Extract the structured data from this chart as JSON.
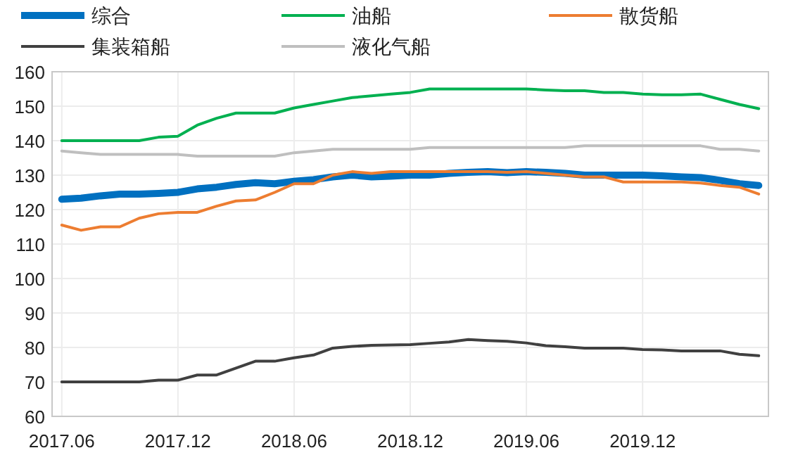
{
  "chart_data": {
    "type": "line",
    "categories": [
      "2017.06",
      null,
      null,
      null,
      null,
      null,
      "2017.12",
      null,
      null,
      null,
      null,
      null,
      "2018.06",
      null,
      null,
      null,
      null,
      null,
      "2018.12",
      null,
      null,
      null,
      null,
      null,
      "2019.06",
      null,
      null,
      null,
      null,
      null,
      "2019.12",
      null,
      null,
      null,
      null,
      null,
      null
    ],
    "ylim": [
      60,
      160
    ],
    "yticks": [
      60,
      70,
      80,
      90,
      100,
      110,
      120,
      130,
      140,
      150,
      160
    ],
    "grid": true,
    "legend": "top",
    "marker": "none",
    "line_style": "solid",
    "series": [
      {
        "name": "综合",
        "color": "#0070c0",
        "values": [
          123,
          123.3,
          124,
          124.5,
          124.5,
          124.7,
          125,
          126,
          126.5,
          127.3,
          127.8,
          127.5,
          128.2,
          128.7,
          129.5,
          130,
          129.5,
          129.7,
          130,
          130,
          130.5,
          130.8,
          131,
          130.7,
          131,
          130.8,
          130.5,
          130,
          130,
          130,
          130,
          129.8,
          129.5,
          129.3,
          128.5,
          127.5,
          127
        ]
      },
      {
        "name": "油船",
        "color": "#00b050",
        "values": [
          140,
          140,
          140,
          140,
          140,
          141,
          141.3,
          144.5,
          146.5,
          148,
          148,
          148,
          149.5,
          150.5,
          151.5,
          152.5,
          153,
          153.5,
          154,
          155,
          155,
          155,
          155,
          155,
          155,
          154.7,
          154.5,
          154.5,
          154,
          154,
          153.5,
          153.3,
          153.3,
          153.5,
          152,
          150.5,
          149.3
        ]
      },
      {
        "name": "散货船",
        "color": "#ed7d31",
        "values": [
          115.5,
          114,
          115,
          115,
          117.5,
          118.8,
          119.2,
          119.2,
          121,
          122.5,
          122.8,
          125,
          127.5,
          127.5,
          130,
          131,
          130.5,
          131,
          131,
          131,
          131,
          131,
          131,
          130.8,
          131,
          130.5,
          130,
          129.5,
          129.5,
          128,
          128,
          128,
          128,
          127.7,
          127,
          126.5,
          124.5
        ]
      },
      {
        "name": "集装箱船",
        "color": "#404040",
        "values": [
          70,
          70,
          70,
          70,
          70,
          70.5,
          70.5,
          72,
          72,
          74,
          76,
          76,
          77,
          77.8,
          79.8,
          80.3,
          80.6,
          80.7,
          80.8,
          81.2,
          81.6,
          82.3,
          82,
          81.8,
          81.3,
          80.5,
          80.2,
          79.8,
          79.8,
          79.8,
          79.4,
          79.3,
          79,
          79,
          79,
          78,
          77.6
        ]
      },
      {
        "name": "液化气船",
        "color": "#bfbfbf",
        "values": [
          137,
          136.5,
          136,
          136,
          136,
          136,
          136,
          135.5,
          135.5,
          135.5,
          135.5,
          135.5,
          136.5,
          137,
          137.5,
          137.5,
          137.5,
          137.5,
          137.5,
          138,
          138,
          138,
          138,
          138,
          138,
          138,
          138,
          138.5,
          138.5,
          138.5,
          138.5,
          138.5,
          138.5,
          138.5,
          137.5,
          137.5,
          137
        ]
      }
    ]
  }
}
